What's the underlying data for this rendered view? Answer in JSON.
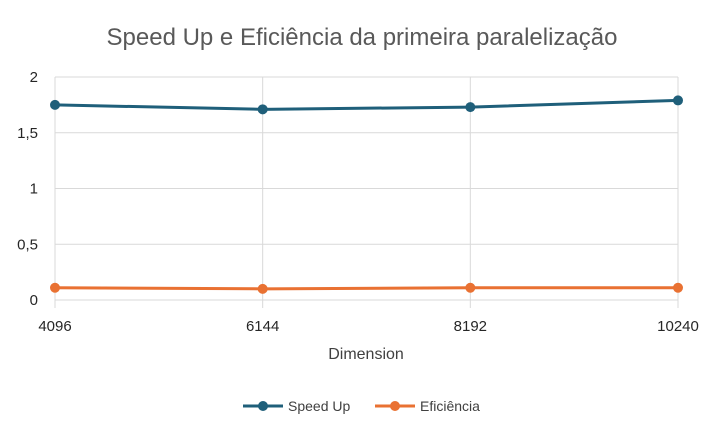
{
  "chart_data": {
    "type": "line",
    "title": "Speed Up e Eficiência da primeira paralelização",
    "xlabel": "Dimension",
    "ylabel": "",
    "categories": [
      "4096",
      "6144",
      "8192",
      "10240"
    ],
    "y_ticks": [
      "0",
      "0,5",
      "1",
      "1,5",
      "2"
    ],
    "ylim": [
      0,
      2
    ],
    "grid": true,
    "legend_position": "bottom",
    "series": [
      {
        "name": "Speed Up",
        "values": [
          1.75,
          1.71,
          1.73,
          1.79
        ],
        "color": "#1f5f7a"
      },
      {
        "name": "Eficiência",
        "values": [
          0.11,
          0.1,
          0.11,
          0.11
        ],
        "color": "#e97132"
      }
    ]
  }
}
